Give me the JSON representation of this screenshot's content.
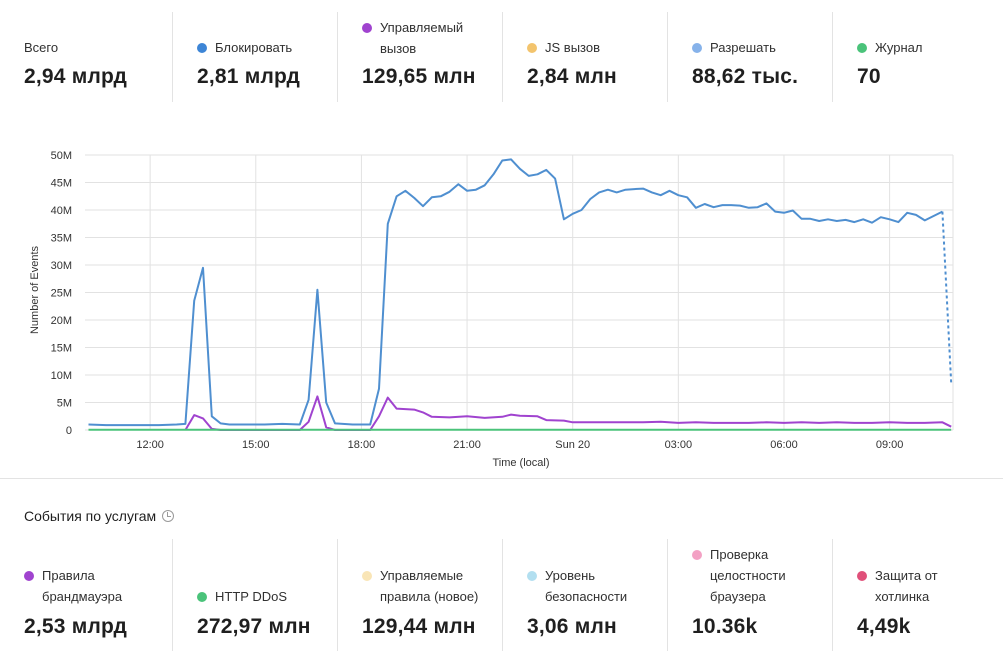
{
  "summary": [
    {
      "label": "Всего",
      "value": "2,94 млрд",
      "color": ""
    },
    {
      "label": "Блокировать",
      "value": "2,81 млрд",
      "color": "#3d85d6"
    },
    {
      "label": "Управляемый\nвызов",
      "value": "129,65 млн",
      "color": "#a043cf"
    },
    {
      "label": "JS вызов",
      "value": "2,84 млн",
      "color": "#f3c46d"
    },
    {
      "label": "Разрешать",
      "value": "88,62 тыс.",
      "color": "#86b2ea"
    },
    {
      "label": "Журнал",
      "value": "70",
      "color": "#4ac37a"
    }
  ],
  "services_title": "События по услугам",
  "services": [
    {
      "label": "Правила\nбрандмауэра",
      "value": "2,53 млрд",
      "color": "#a043cf"
    },
    {
      "label": "HTTP DDoS",
      "value": "272,97 млн",
      "color": "#4ac37a"
    },
    {
      "label": "Управляемые\nправила (новое)",
      "value": "129,44 млн",
      "color": "#f9e5b6"
    },
    {
      "label": "Уровень\nбезопасности",
      "value": "3,06 млн",
      "color": "#b2dff0"
    },
    {
      "label": "Проверка\nцелостности\nбраузера",
      "value": "10.36k",
      "color": "#f3a1c4"
    },
    {
      "label": "Защита от\nхотлинка",
      "value": "4,49k",
      "color": "#e0507a"
    }
  ],
  "chart_data": {
    "type": "line",
    "xlabel": "Time (local)",
    "ylabel": "Number of Events",
    "ylim": [
      0,
      50000000
    ],
    "y_ticks": [
      "0",
      "5M",
      "10M",
      "15M",
      "20M",
      "25M",
      "30M",
      "35M",
      "40M",
      "45M",
      "50M"
    ],
    "x_ticks": [
      {
        "label": "12:00",
        "h": 12
      },
      {
        "label": "15:00",
        "h": 15
      },
      {
        "label": "18:00",
        "h": 18
      },
      {
        "label": "21:00",
        "h": 21
      },
      {
        "label": "Sun 20",
        "h": 24
      },
      {
        "label": "03:00",
        "h": 27
      },
      {
        "label": "06:00",
        "h": 30
      },
      {
        "label": "09:00",
        "h": 33
      }
    ],
    "grid": true,
    "series": [
      {
        "name": "Блокировать",
        "color": "#4f8fd0",
        "points": [
          [
            10.25,
            1000000
          ],
          [
            10.75,
            900000
          ],
          [
            11.25,
            900000
          ],
          [
            11.75,
            900000
          ],
          [
            12.25,
            900000
          ],
          [
            12.75,
            1000000
          ],
          [
            13.0,
            1100000
          ],
          [
            13.25,
            23500000
          ],
          [
            13.5,
            29500000
          ],
          [
            13.75,
            2500000
          ],
          [
            14.0,
            1200000
          ],
          [
            14.25,
            1000000
          ],
          [
            14.75,
            1000000
          ],
          [
            15.25,
            1000000
          ],
          [
            15.75,
            1100000
          ],
          [
            16.25,
            1000000
          ],
          [
            16.5,
            5500000
          ],
          [
            16.75,
            25500000
          ],
          [
            17.0,
            5000000
          ],
          [
            17.25,
            1200000
          ],
          [
            17.75,
            1000000
          ],
          [
            18.25,
            1000000
          ],
          [
            18.5,
            7500000
          ],
          [
            18.75,
            37500000
          ],
          [
            19.0,
            42500000
          ],
          [
            19.25,
            43500000
          ],
          [
            19.5,
            42200000
          ],
          [
            19.75,
            40700000
          ],
          [
            20.0,
            42300000
          ],
          [
            20.25,
            42500000
          ],
          [
            20.5,
            43300000
          ],
          [
            20.75,
            44700000
          ],
          [
            21.0,
            43500000
          ],
          [
            21.25,
            43700000
          ],
          [
            21.5,
            44500000
          ],
          [
            21.75,
            46500000
          ],
          [
            22.0,
            49000000
          ],
          [
            22.25,
            49200000
          ],
          [
            22.5,
            47500000
          ],
          [
            22.75,
            46200000
          ],
          [
            23.0,
            46500000
          ],
          [
            23.25,
            47300000
          ],
          [
            23.5,
            45700000
          ],
          [
            23.75,
            38300000
          ],
          [
            24.0,
            39300000
          ],
          [
            24.25,
            40000000
          ],
          [
            24.5,
            42000000
          ],
          [
            24.75,
            43200000
          ],
          [
            25.0,
            43700000
          ],
          [
            25.25,
            43200000
          ],
          [
            25.5,
            43700000
          ],
          [
            25.75,
            43800000
          ],
          [
            26.0,
            43900000
          ],
          [
            26.25,
            43200000
          ],
          [
            26.5,
            42700000
          ],
          [
            26.75,
            43500000
          ],
          [
            27.0,
            42700000
          ],
          [
            27.25,
            42300000
          ],
          [
            27.5,
            40400000
          ],
          [
            27.75,
            41100000
          ],
          [
            28.0,
            40500000
          ],
          [
            28.25,
            40900000
          ],
          [
            28.5,
            40900000
          ],
          [
            28.75,
            40800000
          ],
          [
            29.0,
            40400000
          ],
          [
            29.25,
            40500000
          ],
          [
            29.5,
            41200000
          ],
          [
            29.75,
            39700000
          ],
          [
            30.0,
            39500000
          ],
          [
            30.25,
            39900000
          ],
          [
            30.5,
            38400000
          ],
          [
            30.75,
            38400000
          ],
          [
            31.0,
            38000000
          ],
          [
            31.25,
            38300000
          ],
          [
            31.5,
            38000000
          ],
          [
            31.75,
            38200000
          ],
          [
            32.0,
            37800000
          ],
          [
            32.25,
            38300000
          ],
          [
            32.5,
            37700000
          ],
          [
            32.75,
            38700000
          ],
          [
            33.0,
            38300000
          ],
          [
            33.25,
            37800000
          ],
          [
            33.5,
            39500000
          ],
          [
            33.75,
            39100000
          ],
          [
            34.0,
            38100000
          ],
          [
            34.25,
            38900000
          ],
          [
            34.5,
            39700000
          ]
        ],
        "tail": [
          [
            34.5,
            39700000
          ],
          [
            34.75,
            8500000
          ]
        ]
      },
      {
        "name": "Управляемый вызов",
        "color": "#a043cf",
        "points": [
          [
            13.0,
            0
          ],
          [
            13.25,
            2700000
          ],
          [
            13.5,
            2100000
          ],
          [
            13.75,
            200000
          ],
          [
            14.0,
            0
          ],
          [
            16.25,
            0
          ],
          [
            16.5,
            1500000
          ],
          [
            16.75,
            6100000
          ],
          [
            17.0,
            500000
          ],
          [
            17.25,
            0
          ],
          [
            18.25,
            0
          ],
          [
            18.5,
            2500000
          ],
          [
            18.75,
            5900000
          ],
          [
            19.0,
            3900000
          ],
          [
            19.5,
            3700000
          ],
          [
            19.75,
            3200000
          ],
          [
            20.0,
            2400000
          ],
          [
            20.5,
            2300000
          ],
          [
            21.0,
            2500000
          ],
          [
            21.5,
            2200000
          ],
          [
            22.0,
            2400000
          ],
          [
            22.25,
            2800000
          ],
          [
            22.5,
            2600000
          ],
          [
            23.0,
            2500000
          ],
          [
            23.25,
            1800000
          ],
          [
            23.75,
            1700000
          ],
          [
            24.0,
            1400000
          ],
          [
            24.5,
            1400000
          ],
          [
            25.0,
            1400000
          ],
          [
            25.5,
            1400000
          ],
          [
            26.0,
            1400000
          ],
          [
            26.5,
            1500000
          ],
          [
            27.0,
            1300000
          ],
          [
            27.5,
            1400000
          ],
          [
            28.0,
            1300000
          ],
          [
            28.5,
            1300000
          ],
          [
            29.0,
            1300000
          ],
          [
            29.5,
            1400000
          ],
          [
            30.0,
            1300000
          ],
          [
            30.5,
            1400000
          ],
          [
            31.0,
            1300000
          ],
          [
            31.5,
            1400000
          ],
          [
            32.0,
            1300000
          ],
          [
            32.5,
            1300000
          ],
          [
            33.0,
            1400000
          ],
          [
            33.5,
            1300000
          ],
          [
            34.0,
            1300000
          ],
          [
            34.5,
            1400000
          ],
          [
            34.75,
            600000
          ]
        ]
      },
      {
        "name": "Журнал",
        "color": "#4ac37a",
        "points": [
          [
            10.25,
            50000
          ],
          [
            34.75,
            50000
          ]
        ]
      }
    ]
  }
}
